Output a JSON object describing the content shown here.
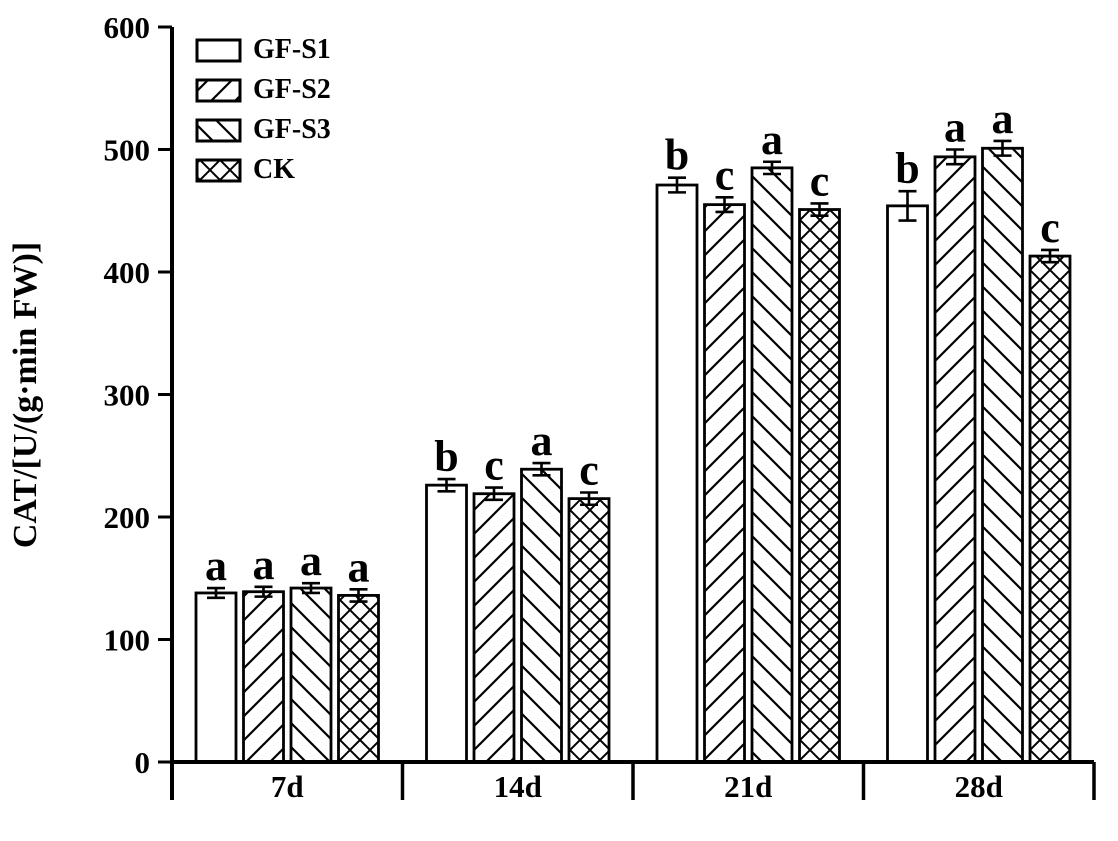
{
  "figure": {
    "background": "#ffffff",
    "ink": "#000000"
  },
  "chart_data": {
    "type": "bar",
    "title": "",
    "xlabel": "",
    "ylabel": "CAT/[U/(g·min FW)]",
    "ylim": [
      0,
      600
    ],
    "yticks": [
      0,
      100,
      200,
      300,
      400,
      500,
      600
    ],
    "categories": [
      "7d",
      "14d",
      "21d",
      "28d"
    ],
    "grid": false,
    "legend_position": "top-left",
    "bar_fill": "#ffffff",
    "series": [
      {
        "name": "GF-S1",
        "hatch": "none",
        "values": [
          138,
          226,
          471,
          454
        ],
        "errors": [
          4,
          5,
          6,
          12
        ],
        "sig_letters": [
          "a",
          "b",
          "b",
          "b"
        ]
      },
      {
        "name": "GF-S2",
        "hatch": "forward-diagonal",
        "values": [
          139,
          219,
          455,
          494
        ],
        "errors": [
          4,
          5,
          6,
          6
        ],
        "sig_letters": [
          "a",
          "c",
          "c",
          "a"
        ]
      },
      {
        "name": "GF-S3",
        "hatch": "backward-diagonal",
        "values": [
          142,
          239,
          485,
          501
        ],
        "errors": [
          4,
          5,
          5,
          6
        ],
        "sig_letters": [
          "a",
          "a",
          "a",
          "a"
        ]
      },
      {
        "name": "CK",
        "hatch": "crosshatch",
        "values": [
          136,
          215,
          451,
          413
        ],
        "errors": [
          5,
          5,
          5,
          5
        ],
        "sig_letters": [
          "a",
          "c",
          "c",
          "c"
        ]
      }
    ]
  }
}
